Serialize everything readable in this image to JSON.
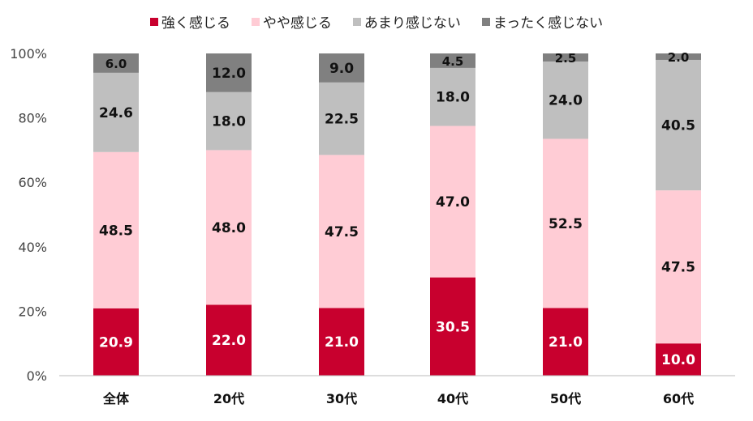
{
  "chart_data": {
    "type": "bar",
    "stacked": true,
    "categories": [
      "全体",
      "20代",
      "30代",
      "40代",
      "50代",
      "60代"
    ],
    "series": [
      {
        "name": "強く感じる",
        "color": "#C8002E",
        "values": [
          20.9,
          22.0,
          21.0,
          30.5,
          21.0,
          10.0
        ]
      },
      {
        "name": "やや感じる",
        "color": "#FFCCD5",
        "values": [
          48.5,
          48.0,
          47.5,
          47.0,
          52.5,
          47.5
        ]
      },
      {
        "name": "あまり感じない",
        "color": "#BFBFBF",
        "values": [
          24.6,
          18.0,
          22.5,
          18.0,
          24.0,
          40.5
        ]
      },
      {
        "name": "まったく感じない",
        "color": "#808080",
        "values": [
          6.0,
          12.0,
          9.0,
          4.5,
          2.5,
          2.0
        ]
      }
    ],
    "yticks": [
      "0%",
      "20%",
      "40%",
      "60%",
      "80%",
      "100%"
    ],
    "ylim": [
      0,
      100
    ],
    "grid": false,
    "legend": "top"
  }
}
